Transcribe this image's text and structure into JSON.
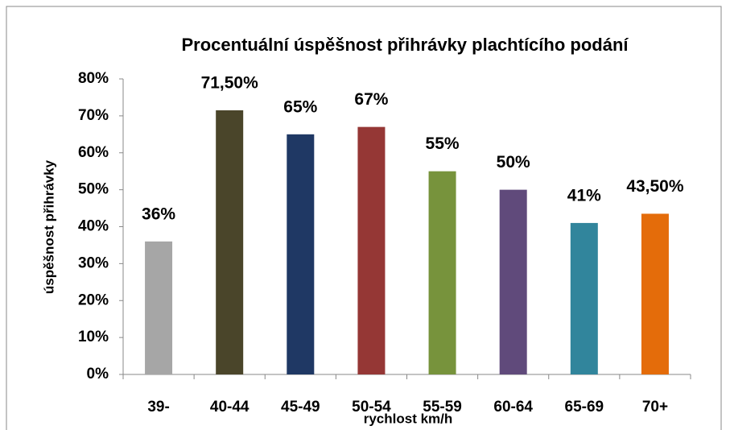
{
  "chart_data": {
    "type": "bar",
    "title": "Procentuální úspěšnost přihrávky plachtícího podání",
    "x_label": "rychlost km/h",
    "y_label": "úspěšnost přihrávky",
    "categories": [
      "39-",
      "40-44",
      "45-49",
      "50-54",
      "55-59",
      "60-64",
      "65-69",
      "70+"
    ],
    "values": [
      36,
      71.5,
      65,
      67,
      55,
      50,
      41,
      43.5
    ],
    "value_labels": [
      "36%",
      "71,50%",
      "65%",
      "67%",
      "55%",
      "50%",
      "41%",
      "43,50%"
    ],
    "colors": [
      "#a6a6a6",
      "#4a452a",
      "#1f3864",
      "#953735",
      "#77933c",
      "#604a7b",
      "#31859c",
      "#e46c0a"
    ],
    "ylim": [
      0,
      80
    ],
    "yticks": [
      {
        "value": 0,
        "label": "0%"
      },
      {
        "value": 10,
        "label": "10%"
      },
      {
        "value": 20,
        "label": "20%"
      },
      {
        "value": 30,
        "label": "30%"
      },
      {
        "value": 40,
        "label": "40%"
      },
      {
        "value": 50,
        "label": "50%"
      },
      {
        "value": 60,
        "label": "60%"
      },
      {
        "value": 70,
        "label": "70%"
      },
      {
        "value": 80,
        "label": "80%"
      }
    ],
    "grid": false
  }
}
